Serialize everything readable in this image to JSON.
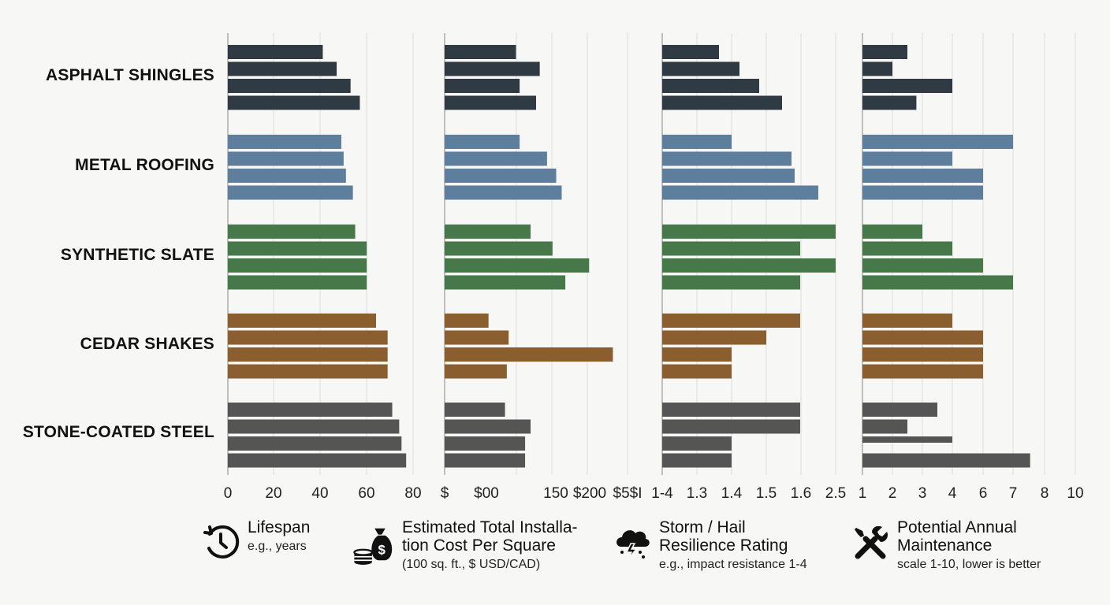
{
  "chart_data": {
    "type": "bar",
    "orientation": "horizontal",
    "categories": [
      "ASPHALT SHINGLES",
      "METAL ROOFING",
      "SYNTHETIC SLATE",
      "CEDAR SHAKES",
      "STONE-COATED STEEL"
    ],
    "category_colors": [
      "#2f3a42",
      "#5e7e9e",
      "#47784a",
      "#8a5e2e",
      "#555555"
    ],
    "bars_per_category": 4,
    "panels": [
      {
        "title": "Lifespan",
        "subtitle": "e.g., years",
        "icon": "clock-icon",
        "tick_labels": [
          "0",
          "20",
          "40",
          "60",
          "80"
        ],
        "ylim": [
          0,
          80
        ],
        "values": [
          [
            41,
            47,
            53,
            57
          ],
          [
            49,
            50,
            51,
            54
          ],
          [
            55,
            60,
            60,
            60
          ],
          [
            64,
            69,
            69,
            69
          ],
          [
            71,
            74,
            75,
            77
          ]
        ]
      },
      {
        "title": "Estimated Total Installa-\ntion Cost Per Square",
        "subtitle": "(100 sq. ft., $ USD/CAD)",
        "icon": "money-bag-icon",
        "tick_labels": [
          "$",
          "$00",
          "150",
          "$200",
          "$5$I"
        ],
        "values": [
          [
            0.39,
            0.52,
            0.41,
            0.5
          ],
          [
            0.41,
            0.56,
            0.61,
            0.64
          ],
          [
            0.47,
            0.59,
            0.79,
            0.66
          ],
          [
            0.24,
            0.35,
            0.92,
            0.34
          ],
          [
            0.33,
            0.47,
            0.44,
            0.44
          ]
        ]
      },
      {
        "title": "Storm / Hail\nResilience Rating",
        "subtitle": "e.g., impact resistance 1-4",
        "icon": "storm-cloud-icon",
        "tick_labels": [
          "1-4",
          "1.3",
          "1.4",
          "1.5",
          "1.6",
          "2.5"
        ],
        "values": [
          [
            1.33,
            1.45,
            1.56,
            1.69
          ],
          [
            1.4,
            1.75,
            1.77,
            1.9
          ],
          [
            2.0,
            1.8,
            2.0,
            1.8
          ],
          [
            1.8,
            1.6,
            1.4,
            1.4
          ],
          [
            1.8,
            1.8,
            1.4,
            1.4
          ]
        ]
      },
      {
        "title": "Potential Annual\nMaintenance",
        "subtitle": "scale 1-10, lower is better",
        "icon": "tools-icon",
        "tick_labels": [
          "1",
          "2",
          "3",
          "4",
          "6",
          "7",
          "8",
          "10"
        ],
        "values": [
          [
            2.5,
            2,
            4,
            2.8
          ],
          [
            7,
            4,
            6,
            6
          ],
          [
            3,
            4,
            6,
            7
          ],
          [
            4,
            6,
            6,
            6
          ],
          [
            3.5,
            2.5,
            4,
            7.7
          ]
        ]
      }
    ],
    "grid": true
  }
}
